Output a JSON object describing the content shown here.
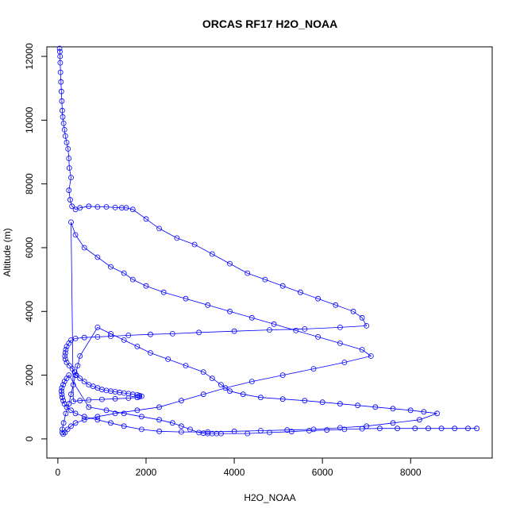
{
  "chart_data": {
    "type": "scatter",
    "title": "ORCAS RF17 H2O_NOAA",
    "xlabel": "H2O_NOAA",
    "ylabel": "Altitude (m)",
    "xlim": [
      -250,
      9850
    ],
    "ylim": [
      -600,
      12300
    ],
    "xticks": [
      0,
      2000,
      4000,
      6000,
      8000
    ],
    "yticks": [
      0,
      2000,
      4000,
      6000,
      8000,
      10000,
      12000
    ],
    "grid": false,
    "legend": "none",
    "series": [
      {
        "color": "#0000ff",
        "marker": "open-circle",
        "line": true,
        "x": [
          40,
          45,
          50,
          55,
          60,
          70,
          80,
          90,
          100,
          110,
          130,
          150,
          170,
          200,
          230,
          250,
          260,
          300,
          250,
          280,
          320,
          400,
          500,
          700,
          900,
          1100,
          1300,
          1450,
          1550,
          1700,
          2000,
          2300,
          2700,
          3100,
          3500,
          3900,
          4300,
          4700,
          5100,
          5500,
          5900,
          6300,
          6700,
          6900,
          7000,
          6400,
          5600,
          4800,
          4000,
          3200,
          2600,
          2100,
          1600,
          1200,
          900,
          600,
          400,
          300,
          250,
          200,
          180,
          170,
          160,
          170,
          200,
          260,
          330,
          380,
          420,
          500,
          600,
          700,
          800,
          900,
          1000,
          1100,
          1200,
          1300,
          1400,
          1500,
          1600,
          1700,
          1800,
          1850,
          1900,
          1850,
          1800,
          1600,
          1300,
          1000,
          700,
          500,
          350,
          300,
          400,
          600,
          900,
          1200,
          1500,
          1700,
          2000,
          2400,
          2900,
          3400,
          3900,
          4400,
          4900,
          5400,
          5900,
          6400,
          6900,
          7100,
          6500,
          5800,
          5100,
          4400,
          3800,
          3300,
          2800,
          2300,
          1800,
          1300,
          900,
          600,
          400,
          300,
          220,
          160,
          120,
          100,
          100,
          130,
          180,
          250,
          300,
          350,
          400,
          450,
          500,
          900,
          1200,
          1500,
          1800,
          2100,
          2500,
          2900,
          3300,
          3500,
          3700,
          3900,
          4200,
          4600,
          5100,
          5600,
          6000,
          6400,
          6800,
          7200,
          7600,
          8000,
          8300,
          8600,
          8200,
          7600,
          7000,
          6400,
          5800,
          5200,
          4600,
          4000,
          3400,
          2800,
          2300,
          1900,
          1500,
          1200,
          900,
          600,
          400,
          300,
          200,
          150,
          120,
          100,
          90,
          80,
          90,
          120,
          150,
          200,
          250,
          700,
          1100,
          1500,
          1900,
          2300,
          2600,
          2800,
          3000,
          3200,
          3300,
          3400,
          3500,
          3600,
          3700,
          4300,
          4800,
          5300,
          5700,
          6100,
          6500,
          6900,
          7300,
          7700,
          8100,
          8400,
          8700,
          9000,
          9300,
          9500
        ],
        "y": [
          12250,
          12150,
          12000,
          11800,
          11500,
          11200,
          10900,
          10600,
          10300,
          10100,
          9900,
          9700,
          9500,
          9300,
          9100,
          8800,
          8500,
          8200,
          7800,
          7500,
          7300,
          7200,
          7250,
          7300,
          7280,
          7280,
          7260,
          7250,
          7250,
          7200,
          6900,
          6600,
          6300,
          6100,
          5800,
          5500,
          5200,
          5000,
          4800,
          4600,
          4400,
          4200,
          4000,
          3800,
          3550,
          3500,
          3450,
          3420,
          3380,
          3340,
          3300,
          3280,
          3250,
          3220,
          3200,
          3180,
          3150,
          3100,
          3000,
          2900,
          2800,
          2700,
          2600,
          2500,
          2400,
          2300,
          2200,
          2100,
          2000,
          1900,
          1800,
          1700,
          1650,
          1600,
          1550,
          1520,
          1500,
          1480,
          1460,
          1440,
          1420,
          1400,
          1380,
          1360,
          1340,
          1320,
          1300,
          1280,
          1260,
          1240,
          1220,
          1200,
          1180,
          6800,
          6400,
          6000,
          5700,
          5400,
          5200,
          5000,
          4800,
          4600,
          4400,
          4200,
          4000,
          3800,
          3600,
          3400,
          3200,
          3000,
          2800,
          2600,
          2400,
          2200,
          2000,
          1800,
          1600,
          1400,
          1200,
          1000,
          900,
          800,
          700,
          600,
          500,
          400,
          300,
          200,
          150,
          200,
          300,
          500,
          800,
          1100,
          1400,
          1700,
          2000,
          2300,
          2600,
          3500,
          3300,
          3100,
          2900,
          2700,
          2500,
          2300,
          2100,
          1900,
          1700,
          1500,
          1400,
          1300,
          1250,
          1200,
          1150,
          1100,
          1050,
          1000,
          950,
          900,
          850,
          800,
          600,
          500,
          400,
          350,
          300,
          280,
          260,
          240,
          220,
          220,
          240,
          300,
          400,
          500,
          600,
          700,
          800,
          900,
          1000,
          1100,
          1200,
          1300,
          1400,
          1500,
          1600,
          1700,
          1800,
          1900,
          2000,
          1000,
          900,
          800,
          700,
          600,
          500,
          400,
          300,
          200,
          180,
          170,
          170,
          170,
          170,
          170,
          200,
          230,
          260,
          280,
          300,
          320,
          330,
          330,
          330,
          330,
          330,
          330,
          330,
          330
        ]
      }
    ]
  }
}
